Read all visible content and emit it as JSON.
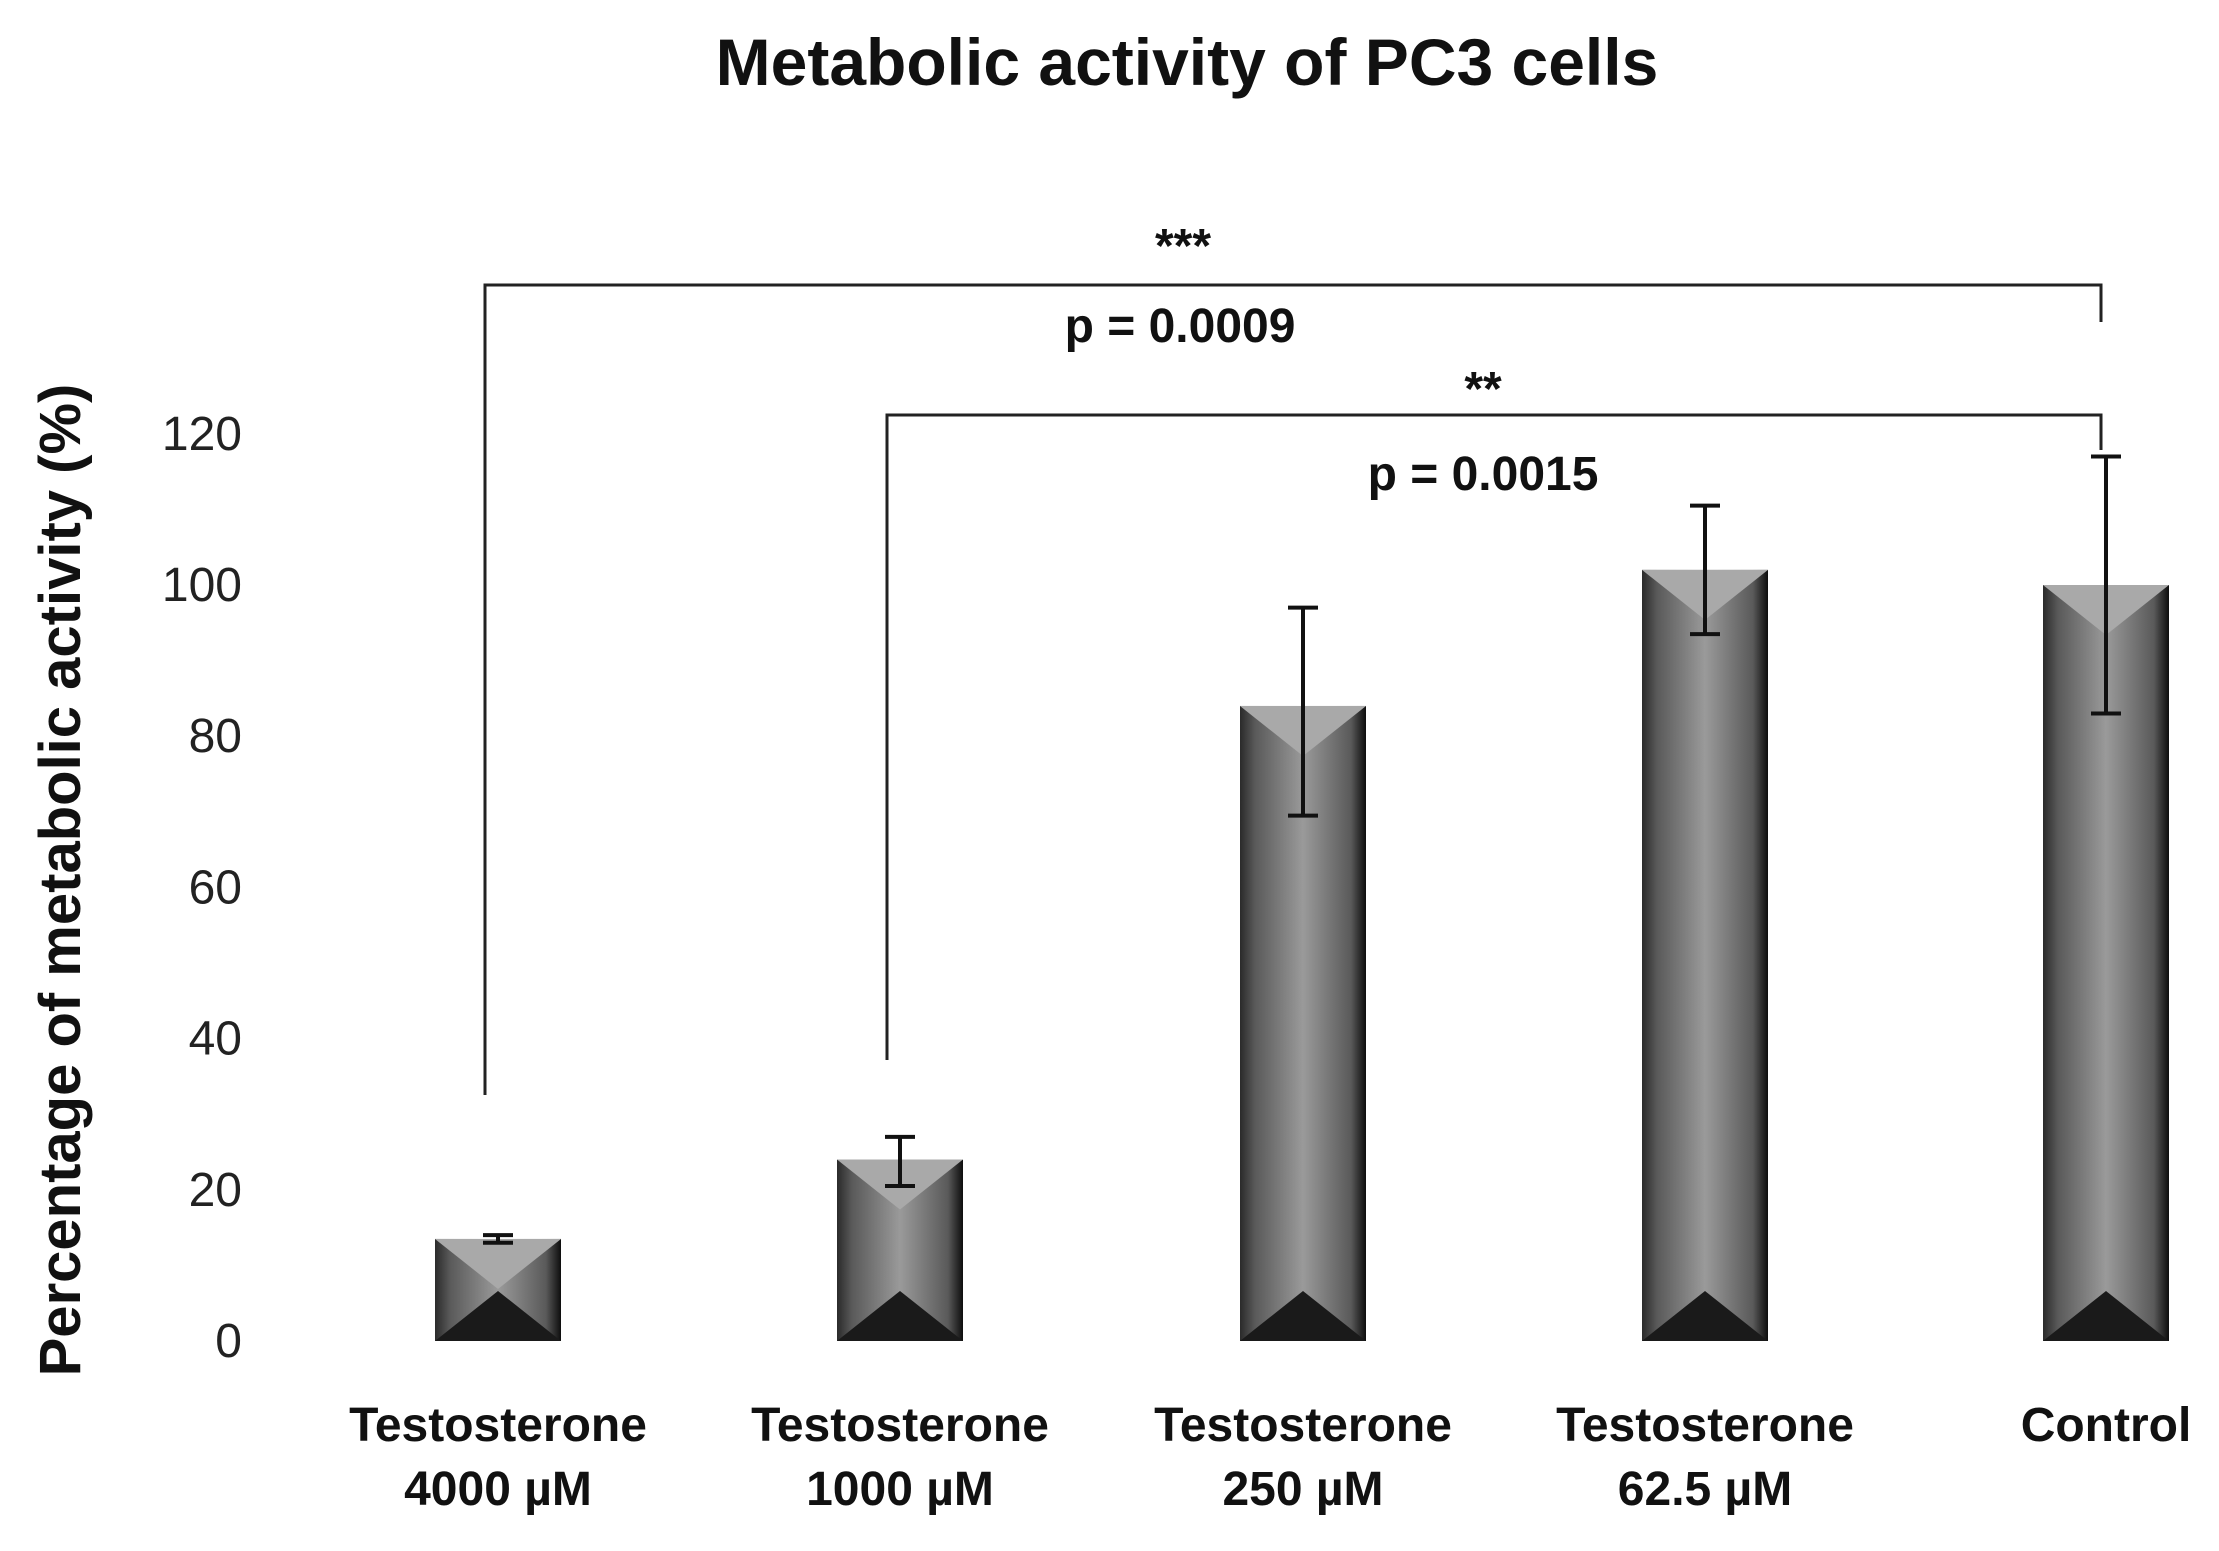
{
  "chart_data": {
    "type": "bar",
    "title": "Metabolic activity of PC3 cells",
    "xlabel": "",
    "ylabel": "Percentage of metabolic activity (%)",
    "ylim": [
      0,
      120
    ],
    "yticks": [
      0,
      20,
      40,
      60,
      80,
      100,
      120
    ],
    "grid": false,
    "categories": [
      [
        "Testosterone",
        "4000 µM"
      ],
      [
        "Testosterone",
        "1000 µM"
      ],
      [
        "Testosterone",
        "250 µM"
      ],
      [
        "Testosterone",
        "62.5 µM"
      ],
      [
        "Control"
      ]
    ],
    "values": [
      13.5,
      24,
      84,
      102,
      100
    ],
    "error_bars": [
      [
        13,
        14
      ],
      [
        20.5,
        27
      ],
      [
        69.5,
        97
      ],
      [
        93.5,
        110.5
      ],
      [
        83,
        117
      ]
    ],
    "annotations": [
      {
        "from_index": 0,
        "to_index": 4,
        "stars": "***",
        "p_text": "p = 0.0009"
      },
      {
        "from_index": 1,
        "to_index": 4,
        "stars": "**",
        "p_text": "p = 0.0015"
      }
    ]
  }
}
